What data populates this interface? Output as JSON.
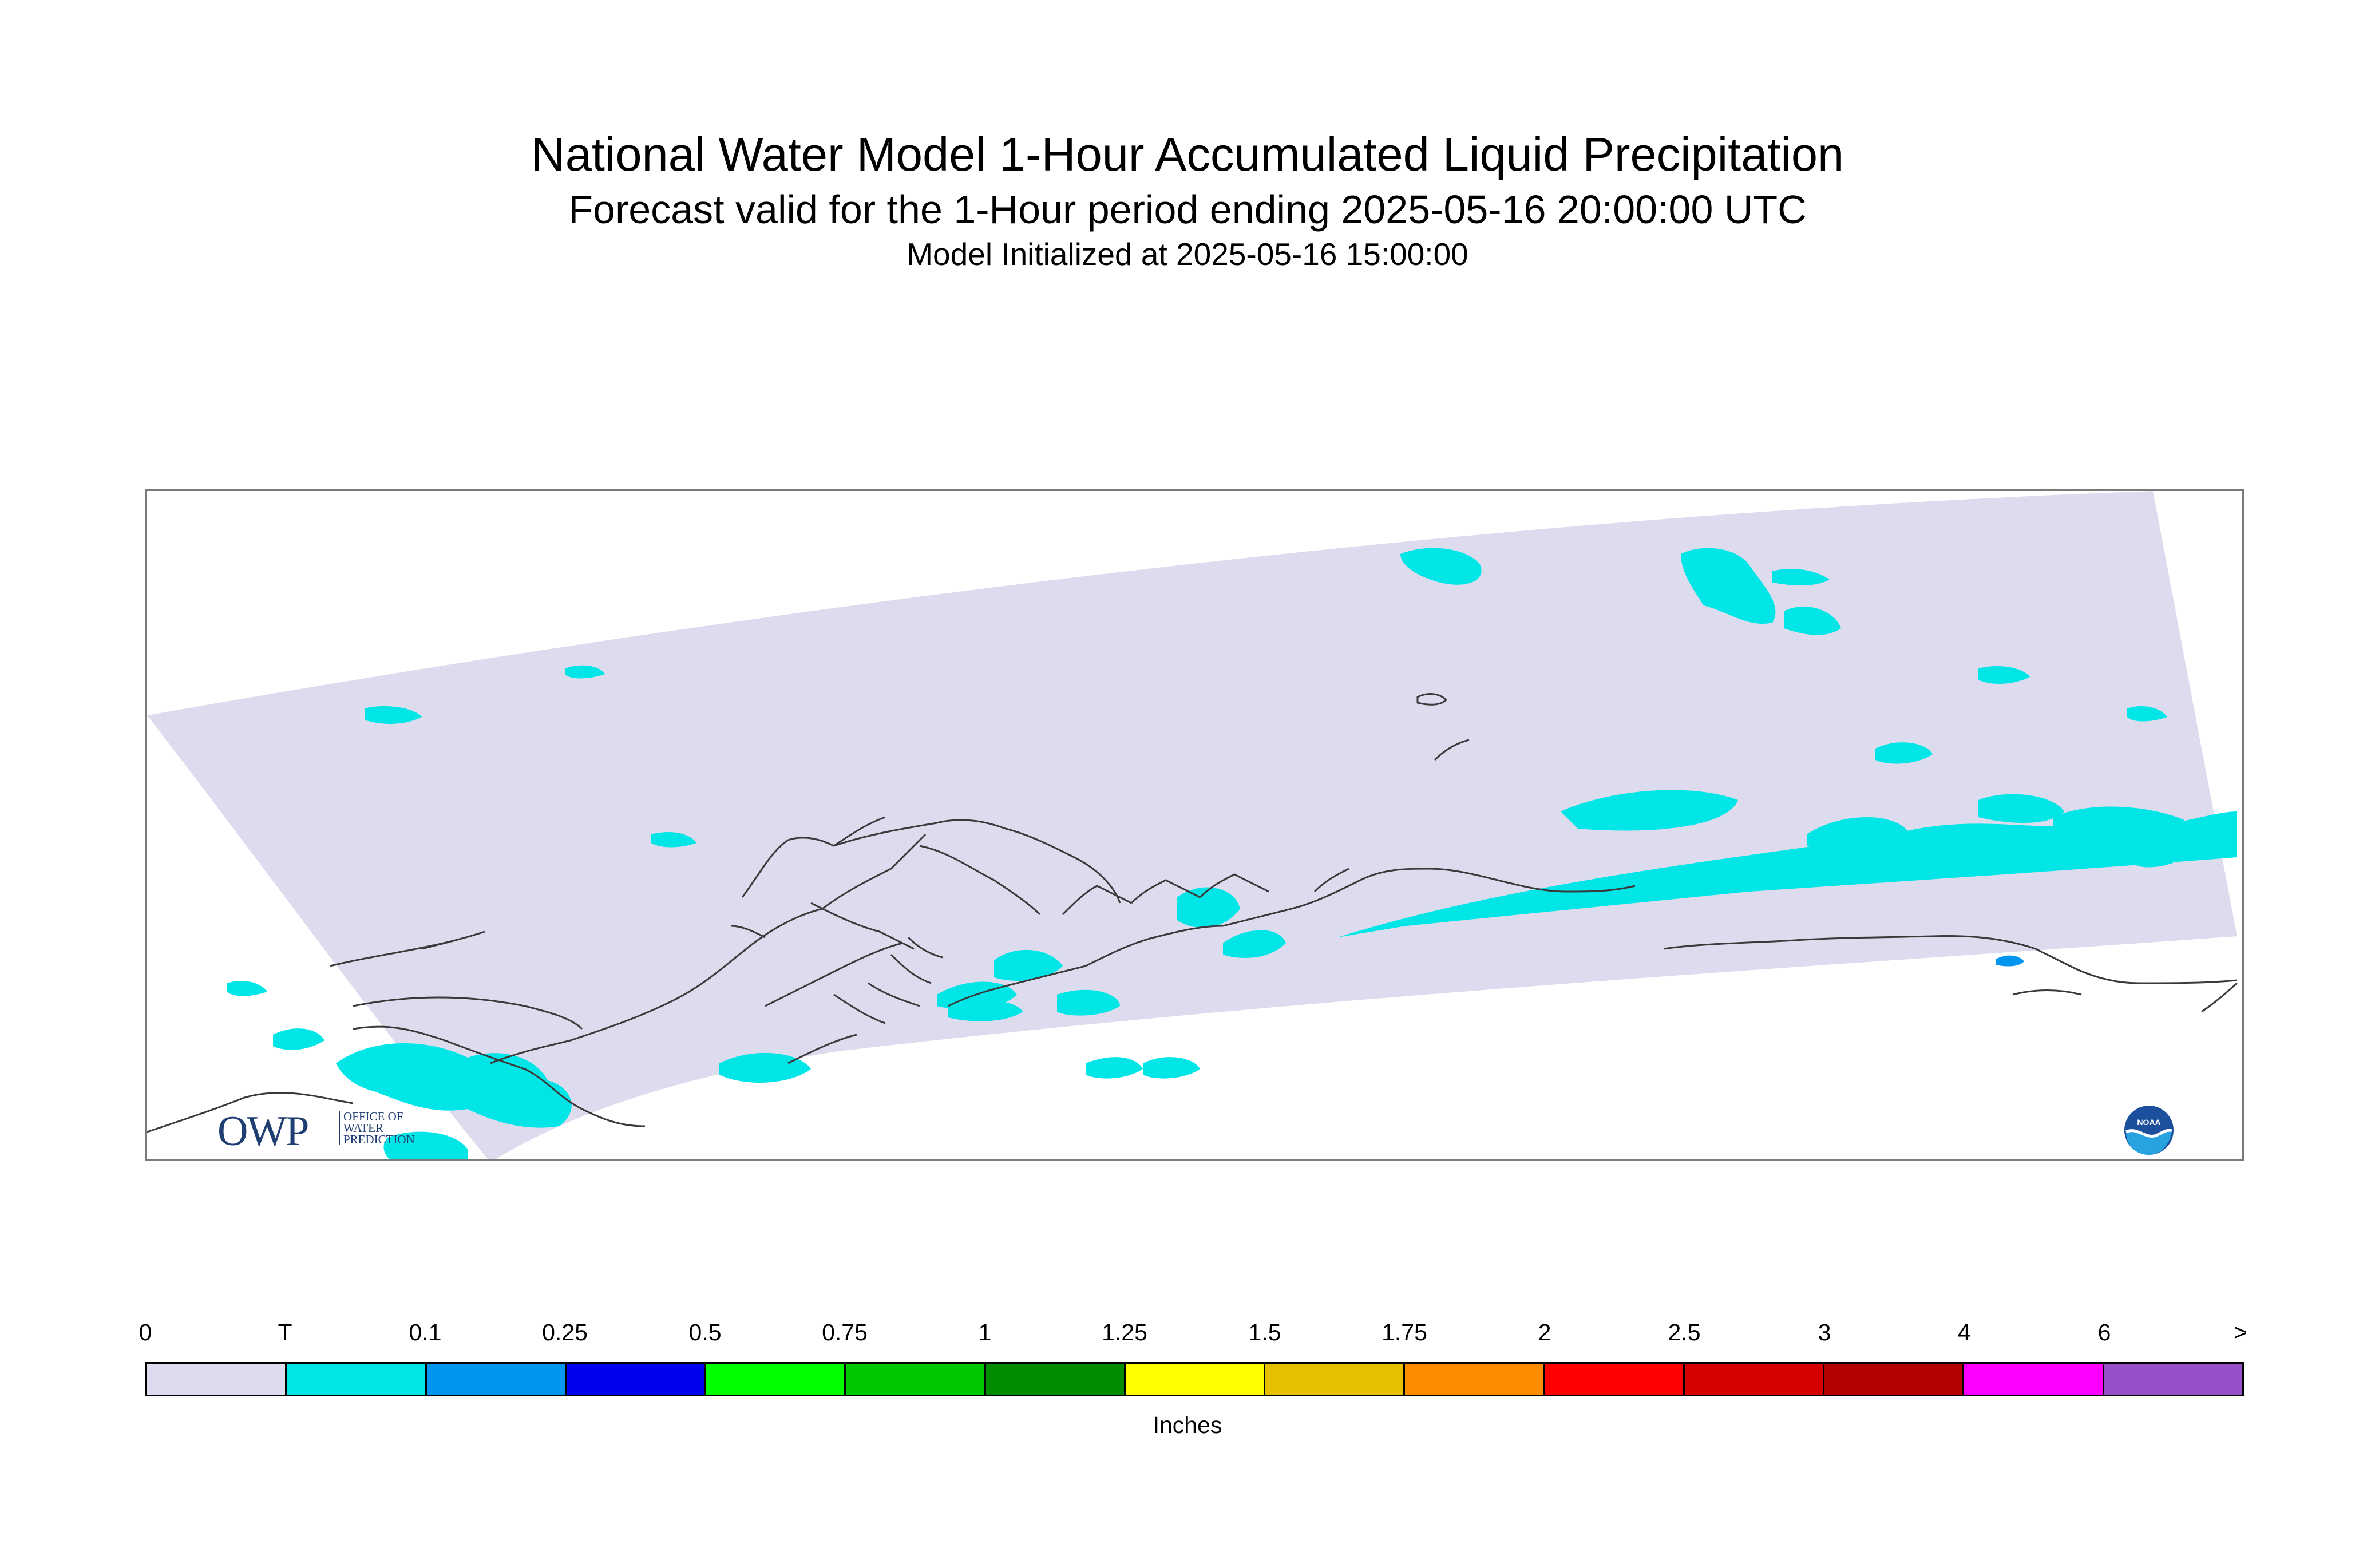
{
  "title": "National Water Model 1-Hour Accumulated Liquid Precipitation",
  "subtitle": "Forecast valid for the 1-Hour period ending 2025-05-16 20:00:00 UTC",
  "init_line": "Model Initialized at 2025-05-16 15:00:00",
  "logos": {
    "owp_letters": "OWP",
    "owp_text": [
      "OFFICE OF",
      "WATER",
      "PREDICTION"
    ],
    "noaa_text": "NOAA"
  },
  "legend": {
    "tick_labels": [
      "0",
      "T",
      "0.1",
      "0.25",
      "0.5",
      "0.75",
      "1",
      "1.25",
      "1.5",
      "1.75",
      "2",
      "2.5",
      "3",
      "4",
      "6",
      ">"
    ],
    "colors": [
      "#dcdcee",
      "#00e6e6",
      "#0096f0",
      "#0000f0",
      "#00ff00",
      "#00c800",
      "#008c00",
      "#ffff00",
      "#e6c000",
      "#ff8c00",
      "#ff0000",
      "#d70000",
      "#b40000",
      "#ff00ff",
      "#9650c8"
    ],
    "units": "Inches"
  },
  "map_colors": {
    "domain_fill": "#dcdcee",
    "trace_fill": "#00e6e6",
    "light_fill": "#0096f0",
    "coastline": "#3a3a3a"
  }
}
